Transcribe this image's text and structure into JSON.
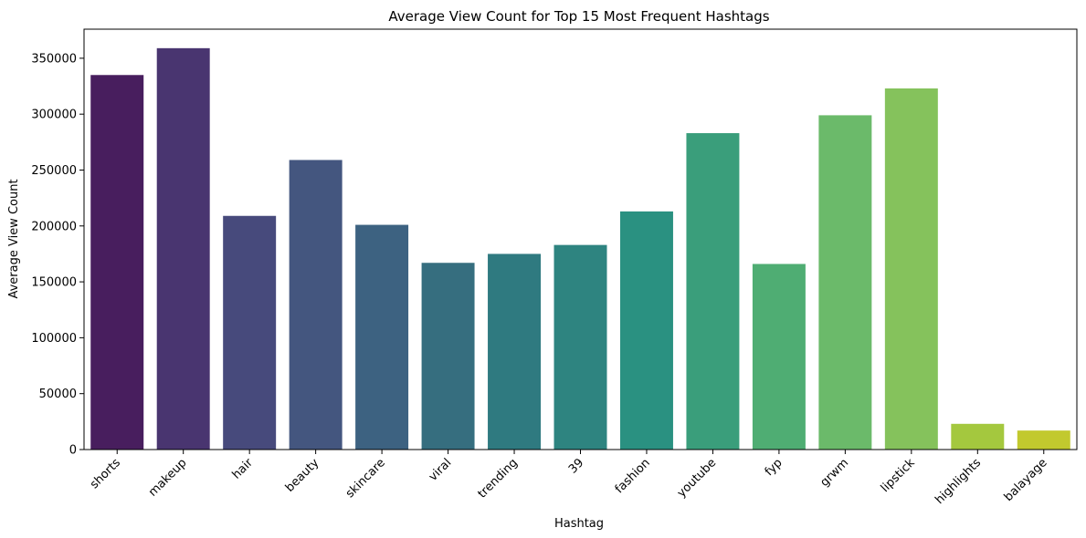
{
  "chart_data": {
    "type": "bar",
    "title": "Average View Count for Top 15 Most Frequent Hashtags",
    "xlabel": "Hashtag",
    "ylabel": "Average View Count",
    "categories": [
      "shorts",
      "makeup",
      "hair",
      "beauty",
      "skincare",
      "viral",
      "trending",
      "39",
      "fashion",
      "youtube",
      "fyp",
      "grwm",
      "lipstick",
      "highlights",
      "balayage"
    ],
    "values": [
      335000,
      359000,
      209000,
      259000,
      201000,
      167000,
      175000,
      183000,
      213000,
      283000,
      166000,
      299000,
      323000,
      23000,
      17000
    ],
    "colors": [
      "#481e5e",
      "#493570",
      "#474a7c",
      "#44567f",
      "#3d6281",
      "#366e7f",
      "#2f7a80",
      "#2e8480",
      "#2a9181",
      "#3a9e7b",
      "#4fad73",
      "#6bba6a",
      "#85c25c",
      "#a4c83e",
      "#c2c92e"
    ],
    "ylim": [
      0,
      376000
    ],
    "yticks": [
      0,
      50000,
      100000,
      150000,
      200000,
      250000,
      300000,
      350000
    ],
    "grid": false,
    "legend": "none"
  }
}
